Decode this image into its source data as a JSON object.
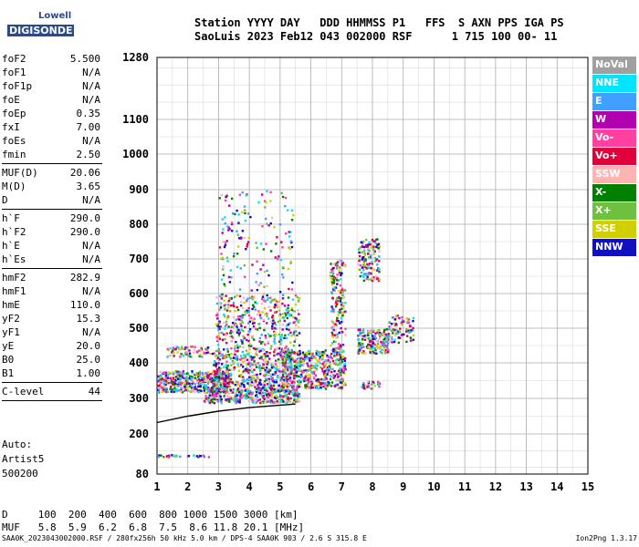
{
  "logo": {
    "line1": "Lowell",
    "line2": "DIGISONDE"
  },
  "header": {
    "line1": "Station YYYY DAY   DDD HHMMSS P1   FFS  S AXN PPS IGA PS",
    "line2": "SaoLuis 2023 Feb12 043 002000 RSF      1 715 100 00- 11"
  },
  "params": {
    "group1": [
      {
        "k": "foF2",
        "v": "5.500"
      },
      {
        "k": "foF1",
        "v": "N/A"
      },
      {
        "k": "foF1p",
        "v": "N/A"
      },
      {
        "k": "foE",
        "v": "N/A"
      },
      {
        "k": "foEp",
        "v": "0.35"
      },
      {
        "k": "fxI",
        "v": "7.00"
      },
      {
        "k": "foEs",
        "v": "N/A"
      },
      {
        "k": "fmin",
        "v": "2.50"
      }
    ],
    "group2": [
      {
        "k": "MUF(D)",
        "v": "20.06"
      },
      {
        "k": "M(D)",
        "v": "3.65"
      },
      {
        "k": "D",
        "v": "N/A"
      }
    ],
    "group3": [
      {
        "k": "h`F",
        "v": "290.0"
      },
      {
        "k": "h`F2",
        "v": "290.0"
      },
      {
        "k": "h`E",
        "v": "N/A"
      },
      {
        "k": "h`Es",
        "v": "N/A"
      }
    ],
    "group4": [
      {
        "k": "hmF2",
        "v": "282.9"
      },
      {
        "k": "hmF1",
        "v": "N/A"
      },
      {
        "k": "hmE",
        "v": "110.0"
      },
      {
        "k": "yF2",
        "v": "15.3"
      },
      {
        "k": "yF1",
        "v": "N/A"
      },
      {
        "k": "yE",
        "v": "20.0"
      },
      {
        "k": "B0",
        "v": "25.0"
      },
      {
        "k": "B1",
        "v": "1.00"
      }
    ],
    "group5": [
      {
        "k": "C-level",
        "v": "44"
      }
    ]
  },
  "auto": {
    "line1": "Auto:",
    "line2": "Artist5",
    "line3": "500200"
  },
  "legend": [
    {
      "label": "NoVal",
      "color": "#a0a0a0"
    },
    {
      "label": "NNE",
      "color": "#00e5ff"
    },
    {
      "label": "E",
      "color": "#3fa0ff"
    },
    {
      "label": "W",
      "color": "#b000b0"
    },
    {
      "label": "Vo-",
      "color": "#ff40a0"
    },
    {
      "label": "Vo+",
      "color": "#e0003a"
    },
    {
      "label": "SSW",
      "color": "#ffb4b4"
    },
    {
      "label": "X-",
      "color": "#008000"
    },
    {
      "label": "X+",
      "color": "#70c040"
    },
    {
      "label": "SSE",
      "color": "#d0d000"
    },
    {
      "label": "NNW",
      "color": "#1010c0"
    }
  ],
  "dmuf": {
    "line1": "D     100  200  400  600  800 1000 1500 3000 [km]",
    "line2": "MUF   5.8  5.9  6.2  6.8  7.5  8.6 11.8 20.1 [MHz]"
  },
  "footer": {
    "left": "SAA0K_2023043002000.RSF / 280fx256h 50 kHz 5.0 km / DPS-4 SAA0K 903 / 2.6 S 315.8 E",
    "right": "Ion2Png 1.3.17"
  },
  "chart_data": {
    "type": "scatter",
    "xlim": [
      1,
      15
    ],
    "ylim": [
      80,
      1280
    ],
    "y_scale": "nonlinear",
    "x_ticks": [
      1,
      2,
      3,
      4,
      5,
      6,
      7,
      8,
      9,
      10,
      11,
      12,
      13,
      14,
      15
    ],
    "y_ticks": [
      80,
      200,
      300,
      400,
      500,
      600,
      700,
      800,
      900,
      1000,
      1100,
      1280
    ],
    "grid": true,
    "trace_curve": [
      [
        1.0,
        232
      ],
      [
        2.0,
        250
      ],
      [
        3.0,
        264
      ],
      [
        4.0,
        274
      ],
      [
        5.0,
        281
      ],
      [
        5.5,
        284
      ]
    ],
    "echo_clusters": [
      {
        "f": [
          1.0,
          3.3
        ],
        "h": [
          320,
          380
        ],
        "density": 0.9
      },
      {
        "f": [
          1.3,
          2.9
        ],
        "h": [
          420,
          450
        ],
        "density": 0.4
      },
      {
        "f": [
          2.5,
          5.6
        ],
        "h": [
          290,
          330
        ],
        "density": 0.8
      },
      {
        "f": [
          2.8,
          5.4
        ],
        "h": [
          330,
          430
        ],
        "density": 0.45
      },
      {
        "f": [
          2.9,
          5.6
        ],
        "h": [
          430,
          600
        ],
        "density": 0.25
      },
      {
        "f": [
          3.0,
          5.4
        ],
        "h": [
          600,
          900
        ],
        "density": 0.06
      },
      {
        "f": [
          5.0,
          7.1
        ],
        "h": [
          330,
          440
        ],
        "density": 0.6
      },
      {
        "f": [
          6.6,
          7.1
        ],
        "h": [
          440,
          700
        ],
        "density": 0.35
      },
      {
        "f": [
          7.5,
          8.2
        ],
        "h": [
          640,
          760
        ],
        "density": 0.45
      },
      {
        "f": [
          7.5,
          8.5
        ],
        "h": [
          430,
          500
        ],
        "density": 0.7
      },
      {
        "f": [
          7.6,
          8.2
        ],
        "h": [
          330,
          350
        ],
        "density": 0.7
      },
      {
        "f": [
          8.5,
          9.3
        ],
        "h": [
          460,
          540
        ],
        "density": 0.35
      },
      {
        "f": [
          1.0,
          2.7
        ],
        "h": [
          133,
          140
        ],
        "density": 0.7
      }
    ]
  }
}
